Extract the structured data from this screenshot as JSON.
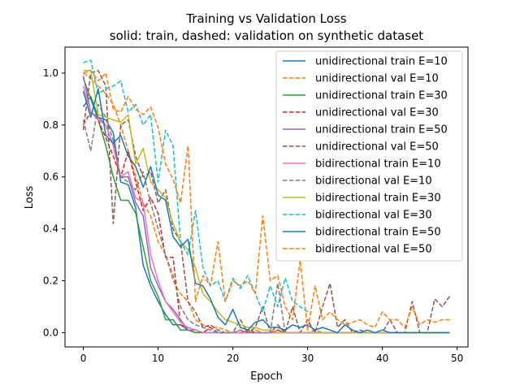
{
  "chart_data": {
    "type": "line",
    "title": "Training vs Validation Loss",
    "subtitle": "solid: train, dashed: validation on synthetic dataset",
    "xlabel": "Epoch",
    "ylabel": "Loss",
    "xlim": [
      -2.45,
      51.45
    ],
    "ylim": [
      -0.055,
      1.1
    ],
    "xticks": [
      0,
      10,
      20,
      30,
      40,
      50
    ],
    "yticks": [
      0.0,
      0.2,
      0.4,
      0.6,
      0.8,
      1.0
    ],
    "xtick_labels": [
      "0",
      "10",
      "20",
      "30",
      "40",
      "50"
    ],
    "ytick_labels": [
      "0.0",
      "0.2",
      "0.4",
      "0.6",
      "0.8",
      "1.0"
    ],
    "grid": false,
    "legend_position": "top-right",
    "series": [
      {
        "name": "unidirectional train E=10",
        "color": "#1f77b4",
        "style": "solid",
        "x": [
          0,
          1,
          2,
          3,
          4,
          5,
          6,
          7,
          8,
          9,
          10,
          11,
          12,
          13,
          14,
          15,
          16,
          17,
          18,
          19,
          20,
          21,
          22,
          23,
          24,
          25,
          26,
          27,
          28,
          29,
          30,
          31,
          32,
          33,
          34,
          35,
          36,
          37,
          38,
          39,
          40,
          41,
          42,
          43,
          44,
          45,
          46,
          47,
          48,
          49
        ],
        "values": [
          0.87,
          0.91,
          0.83,
          0.82,
          0.77,
          0.58,
          0.57,
          0.48,
          0.26,
          0.18,
          0.12,
          0.07,
          0.03,
          0.03,
          0.01,
          0.0,
          0.0,
          0.0,
          0.0,
          0.0,
          0.0,
          0.0,
          0.0,
          0.0,
          0.0,
          0.0,
          0.0,
          0.0,
          0.0,
          0.0,
          0.0,
          0.0,
          0.0,
          0.0,
          0.0,
          0.0,
          0.0,
          0.0,
          0.0,
          0.0,
          0.0,
          0.0,
          0.0,
          0.0,
          0.0,
          0.0,
          0.0,
          0.0,
          0.0,
          0.0
        ]
      },
      {
        "name": "unidirectional val E=10",
        "color": "#ff7f0e",
        "style": "dashed",
        "x": [
          0,
          1,
          2,
          3,
          4,
          5,
          6,
          7,
          8,
          9,
          10,
          11,
          12,
          13,
          14,
          15,
          16,
          17,
          18,
          19,
          20,
          21,
          22,
          23,
          24,
          25,
          26,
          27,
          28,
          29,
          30,
          31,
          32,
          33,
          34,
          35,
          36,
          37,
          38,
          39,
          40,
          41,
          42,
          43,
          44,
          45,
          46,
          47,
          48,
          49
        ],
        "values": [
          1.0,
          0.98,
          0.95,
          0.92,
          0.88,
          0.8,
          0.7,
          0.6,
          0.5,
          0.45,
          0.35,
          0.3,
          0.2,
          0.15,
          0.12,
          0.05,
          0.03,
          0.02,
          0.02,
          0.01,
          0.0,
          0.01,
          0.0,
          0.01,
          0.0,
          0.0,
          0.01,
          0.0,
          0.0,
          0.0,
          0.0,
          0.01,
          0.0,
          0.0,
          0.0,
          0.0,
          0.0,
          0.0,
          0.0,
          0.0,
          0.0,
          0.0,
          0.0,
          0.0,
          0.0,
          0.0,
          0.0,
          0.0,
          0.0,
          0.0
        ]
      },
      {
        "name": "unidirectional train E=30",
        "color": "#2ca02c",
        "style": "solid",
        "x": [
          0,
          1,
          2,
          3,
          4,
          5,
          6,
          7,
          8,
          9,
          10,
          11,
          12,
          13,
          14,
          15,
          16,
          17,
          18,
          19,
          20,
          21,
          22,
          23,
          24,
          25,
          26,
          27,
          28,
          29,
          30,
          31,
          32,
          33,
          34,
          35,
          36,
          37,
          38,
          39,
          40,
          41,
          42,
          43,
          44,
          45,
          46,
          47,
          48,
          49
        ],
        "values": [
          0.98,
          0.9,
          0.82,
          0.72,
          0.6,
          0.51,
          0.51,
          0.46,
          0.33,
          0.2,
          0.14,
          0.05,
          0.05,
          0.01,
          0.01,
          0.0,
          0.0,
          0.0,
          0.0,
          0.0,
          0.0,
          0.0,
          0.0,
          0.0,
          0.0,
          0.0,
          0.0,
          0.0,
          0.0,
          0.0,
          0.0,
          0.0,
          0.0,
          0.0,
          0.0,
          0.0,
          0.0,
          0.0,
          0.0,
          0.0,
          0.0,
          0.0,
          0.0,
          0.0,
          0.0,
          0.0,
          0.0,
          0.0,
          0.0,
          0.0
        ]
      },
      {
        "name": "unidirectional val E=30",
        "color": "#d62728",
        "style": "dashed",
        "x": [
          0,
          1,
          2,
          3,
          4,
          5,
          6,
          7,
          8,
          9,
          10,
          11,
          12,
          13,
          14,
          15,
          16,
          17,
          18,
          19,
          20,
          21,
          22,
          23,
          24,
          25,
          26,
          27,
          28,
          29,
          30,
          31,
          32,
          33,
          34,
          35,
          36,
          37,
          38,
          39,
          40,
          41,
          42,
          43,
          44,
          45,
          46,
          47,
          48,
          49
        ],
        "values": [
          0.8,
          0.85,
          0.82,
          0.75,
          0.68,
          0.6,
          0.7,
          0.58,
          0.47,
          0.52,
          0.46,
          0.29,
          0.29,
          0.03,
          0.02,
          0.01,
          0.0,
          0.02,
          0.0,
          0.0,
          0.0,
          0.0,
          0.01,
          0.0,
          0.0,
          0.0,
          0.01,
          0.0,
          0.0,
          0.0,
          0.0,
          0.0,
          0.0,
          0.0,
          0.0,
          0.0,
          0.0,
          0.0,
          0.0,
          0.0,
          0.0,
          0.0,
          0.0,
          0.0,
          0.0,
          0.0,
          0.0,
          0.0,
          0.0,
          0.0
        ]
      },
      {
        "name": "unidirectional train E=50",
        "color": "#9467bd",
        "style": "solid",
        "x": [
          0,
          1,
          2,
          3,
          4,
          5,
          6,
          7,
          8,
          9,
          10,
          11,
          12,
          13,
          14,
          15,
          16,
          17,
          18,
          19,
          20,
          21,
          22,
          23,
          24,
          25,
          26,
          27,
          28,
          29,
          30,
          31,
          32,
          33,
          34,
          35,
          36,
          37,
          38,
          39,
          40,
          41,
          42,
          43,
          44,
          45,
          46,
          47,
          48,
          49
        ],
        "values": [
          0.99,
          0.85,
          0.83,
          0.8,
          0.72,
          0.6,
          0.6,
          0.5,
          0.45,
          0.25,
          0.18,
          0.12,
          0.09,
          0.05,
          0.01,
          0.01,
          0.0,
          0.0,
          0.0,
          0.0,
          0.0,
          0.0,
          0.0,
          0.0,
          0.0,
          0.0,
          0.0,
          0.0,
          0.0,
          0.0,
          0.0,
          0.0,
          0.0,
          0.0,
          0.0,
          0.0,
          0.0,
          0.0,
          0.0,
          0.0,
          0.0,
          0.0,
          0.0,
          0.0,
          0.0,
          0.0,
          0.0,
          0.0,
          0.0,
          0.0
        ]
      },
      {
        "name": "unidirectional val E=50",
        "color": "#8c564b",
        "style": "dashed",
        "x": [
          0,
          1,
          2,
          3,
          4,
          5,
          6,
          7,
          8,
          9,
          10,
          11,
          12,
          13,
          14,
          15,
          16,
          17,
          18,
          19,
          20,
          21,
          22,
          23,
          24,
          25,
          26,
          27,
          28,
          29,
          30,
          31,
          32,
          33,
          34,
          35,
          36,
          37,
          38,
          39,
          40,
          41,
          42,
          43,
          44,
          45,
          46,
          47,
          48,
          49
        ],
        "values": [
          0.78,
          1.0,
          1.01,
          0.95,
          0.42,
          0.8,
          0.82,
          0.68,
          0.6,
          0.62,
          0.5,
          0.55,
          0.4,
          0.35,
          0.12,
          0.08,
          0.02,
          0.03,
          0.01,
          0.0,
          0.0,
          0.05,
          0.0,
          0.02,
          0.1,
          0.0,
          0.03,
          0.0,
          0.1,
          0.0,
          0.05,
          0.0,
          0.1,
          0.19,
          0.02,
          0.05,
          0.0,
          0.01,
          0.0,
          0.0,
          0.0,
          0.05,
          0.0,
          0.0,
          0.12,
          0.0,
          0.0,
          0.13,
          0.1,
          0.14
        ]
      },
      {
        "name": "bidirectional train E=10",
        "color": "#e377c2",
        "style": "solid",
        "x": [
          0,
          1,
          2,
          3,
          4,
          5,
          6,
          7,
          8,
          9,
          10,
          11,
          12,
          13,
          14,
          15,
          16,
          17,
          18,
          19,
          20,
          21,
          22,
          23,
          24,
          25,
          26,
          27,
          28,
          29,
          30,
          31,
          32,
          33,
          34,
          35,
          36,
          37,
          38,
          39,
          40,
          41,
          42,
          43,
          44,
          45,
          46,
          47,
          48,
          49
        ],
        "values": [
          0.95,
          0.85,
          0.82,
          0.8,
          0.72,
          0.6,
          0.62,
          0.52,
          0.5,
          0.3,
          0.2,
          0.12,
          0.08,
          0.04,
          0.02,
          0.01,
          0.0,
          0.0,
          0.0,
          0.0,
          0.0,
          0.0,
          0.0,
          0.0,
          0.0,
          0.0,
          0.0,
          0.0,
          0.0,
          0.0,
          0.0,
          0.0,
          0.0,
          0.0,
          0.0,
          0.0,
          0.0,
          0.0,
          0.0,
          0.0,
          0.0,
          0.0,
          0.0,
          0.0,
          0.0,
          0.0,
          0.0,
          0.0,
          0.0,
          0.0
        ]
      },
      {
        "name": "bidirectional val E=10",
        "color": "#7f7f7f",
        "style": "dashed",
        "x": [
          0,
          1,
          2,
          3,
          4,
          5,
          6,
          7,
          8,
          9,
          10,
          11,
          12,
          13,
          14,
          15,
          16,
          17,
          18,
          19,
          20,
          21,
          22,
          23,
          24,
          25,
          26,
          27,
          28,
          29,
          30,
          31,
          32,
          33,
          34,
          35,
          36,
          37,
          38,
          39,
          40,
          41,
          42,
          43,
          44,
          45,
          46,
          47,
          48,
          49
        ],
        "values": [
          0.82,
          0.7,
          0.88,
          0.83,
          0.74,
          0.6,
          0.58,
          0.55,
          0.62,
          0.5,
          0.4,
          0.3,
          0.22,
          0.1,
          0.05,
          0.03,
          0.02,
          0.01,
          0.0,
          0.0,
          0.0,
          0.01,
          0.0,
          0.0,
          0.0,
          0.0,
          0.19,
          0.0,
          0.0,
          0.0,
          0.0,
          0.0,
          0.0,
          0.0,
          0.0,
          0.0,
          0.0,
          0.0,
          0.0,
          0.0,
          0.0,
          0.0,
          0.0,
          0.0,
          0.0,
          0.0,
          0.0,
          0.0,
          0.0,
          0.0
        ]
      },
      {
        "name": "bidirectional train E=30",
        "color": "#bcbd22",
        "style": "solid",
        "x": [
          0,
          1,
          2,
          3,
          4,
          5,
          6,
          7,
          8,
          9,
          10,
          11,
          12,
          13,
          14,
          15,
          16,
          17,
          18,
          19,
          20,
          21,
          22,
          23,
          24,
          25,
          26,
          27,
          28,
          29,
          30,
          31,
          32,
          33,
          34,
          35,
          36,
          37,
          38,
          39,
          40,
          41,
          42,
          43,
          44,
          45,
          46,
          47,
          48,
          49
        ],
        "values": [
          1.01,
          1.01,
          0.84,
          0.83,
          0.82,
          0.81,
          0.84,
          0.65,
          0.71,
          0.58,
          0.55,
          0.52,
          0.42,
          0.35,
          0.32,
          0.25,
          0.15,
          0.12,
          0.08,
          0.05,
          0.04,
          0.03,
          0.02,
          0.02,
          0.01,
          0.01,
          0.0,
          0.0,
          0.0,
          0.0,
          0.0,
          0.0,
          0.0,
          0.0,
          0.0,
          0.0,
          0.0,
          0.0,
          0.0,
          0.0,
          0.0,
          0.0,
          0.0,
          0.0,
          0.0,
          0.0,
          0.0,
          0.0,
          0.0,
          0.0
        ]
      },
      {
        "name": "bidirectional val E=30",
        "color": "#17becf",
        "style": "dashed",
        "x": [
          0,
          1,
          2,
          3,
          4,
          5,
          6,
          7,
          8,
          9,
          10,
          11,
          12,
          13,
          14,
          15,
          16,
          17,
          18,
          19,
          20,
          21,
          22,
          23,
          24,
          25,
          26,
          27,
          28,
          29,
          30
        ],
        "values": [
          1.04,
          1.05,
          0.92,
          0.94,
          0.95,
          0.97,
          0.85,
          0.88,
          0.8,
          0.84,
          0.58,
          0.78,
          0.72,
          0.35,
          0.3,
          0.47,
          0.25,
          0.18,
          0.2,
          0.12,
          0.21,
          0.17,
          0.22,
          0.15,
          0.08,
          0.18,
          0.1,
          0.21,
          0.12,
          0.1,
          0.08
        ]
      },
      {
        "name": "bidirectional train E=50",
        "color": "#1f77b4",
        "style": "solid",
        "x": [
          0,
          1,
          2,
          3,
          4,
          5,
          6,
          7,
          8,
          9,
          10,
          11,
          12,
          13,
          14,
          15,
          16,
          17,
          18,
          19,
          20,
          21,
          22,
          23,
          24,
          25,
          26,
          27,
          28,
          29,
          30,
          31,
          32,
          33,
          34,
          35,
          36,
          37,
          38,
          39,
          40,
          41,
          42,
          43,
          44,
          45,
          46,
          47,
          48,
          49
        ],
        "values": [
          0.93,
          0.83,
          0.94,
          0.76,
          0.73,
          0.76,
          0.68,
          0.64,
          0.56,
          0.64,
          0.53,
          0.51,
          0.37,
          0.33,
          0.36,
          0.19,
          0.18,
          0.13,
          0.06,
          0.03,
          0.09,
          0.02,
          0.01,
          0.04,
          0.05,
          0.02,
          0.02,
          0.01,
          0.03,
          0.02,
          0.03,
          0.01,
          0.02,
          0.01,
          0.0,
          0.03,
          0.01,
          0.0,
          0.01,
          0.0,
          0.01,
          0.0,
          0.0,
          0.0,
          0.0,
          0.0,
          0.0,
          0.0,
          0.0,
          0.0
        ]
      },
      {
        "name": "bidirectional val E=50",
        "color": "#ff7f0e",
        "style": "dashed",
        "x": [
          0,
          1,
          2,
          3,
          4,
          5,
          6,
          7,
          8,
          9,
          10,
          11,
          12,
          13,
          14,
          15,
          16,
          17,
          18,
          19,
          20,
          21,
          22,
          23,
          24,
          25,
          26,
          27,
          28,
          29,
          30,
          31,
          32,
          33,
          34,
          35,
          36,
          37,
          38,
          39,
          40,
          41,
          42,
          43,
          44,
          45,
          46,
          47,
          48,
          49
        ],
        "values": [
          1.0,
          1.01,
          0.97,
          1.0,
          0.86,
          0.85,
          0.91,
          0.86,
          0.84,
          0.87,
          0.79,
          0.65,
          0.59,
          0.5,
          0.72,
          0.12,
          0.22,
          0.18,
          0.35,
          0.12,
          0.2,
          0.18,
          0.2,
          0.15,
          0.45,
          0.2,
          0.22,
          0.1,
          0.05,
          0.28,
          0.01,
          0.18,
          0.05,
          0.08,
          0.05,
          0.03,
          0.04,
          0.05,
          0.03,
          0.02,
          0.08,
          0.05,
          0.05,
          0.02,
          0.1,
          0.03,
          0.05,
          0.04,
          0.05,
          0.05
        ]
      }
    ]
  }
}
